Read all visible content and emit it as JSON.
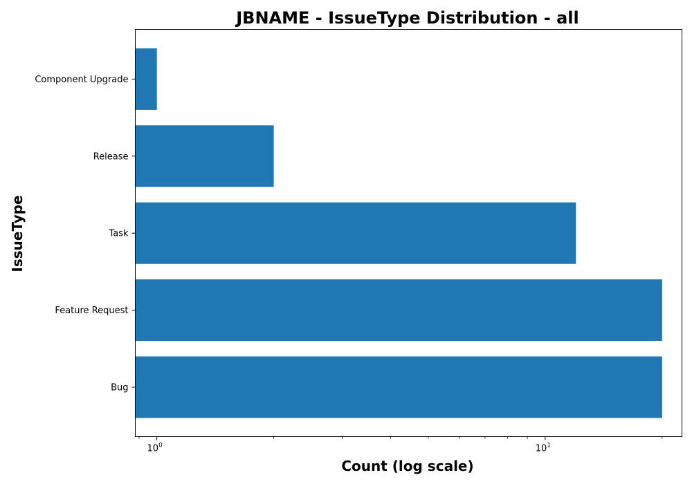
{
  "chart_data": {
    "type": "bar",
    "orientation": "horizontal",
    "title": "JBNAME - IssueType Distribution - all",
    "xlabel": "Count (log scale)",
    "ylabel": "IssueType",
    "xscale": "log",
    "xlim": [
      0.88,
      22.5
    ],
    "x_ticks": [
      {
        "base": "10",
        "exp": "0",
        "value": 1
      },
      {
        "base": "10",
        "exp": "1",
        "value": 10
      }
    ],
    "categories": [
      "Bug",
      "Feature Request",
      "Task",
      "Release",
      "Component Upgrade"
    ],
    "values": [
      20,
      20,
      12,
      2,
      1
    ],
    "bar_color": "#1f77b4",
    "grid": false,
    "legend": "none"
  }
}
